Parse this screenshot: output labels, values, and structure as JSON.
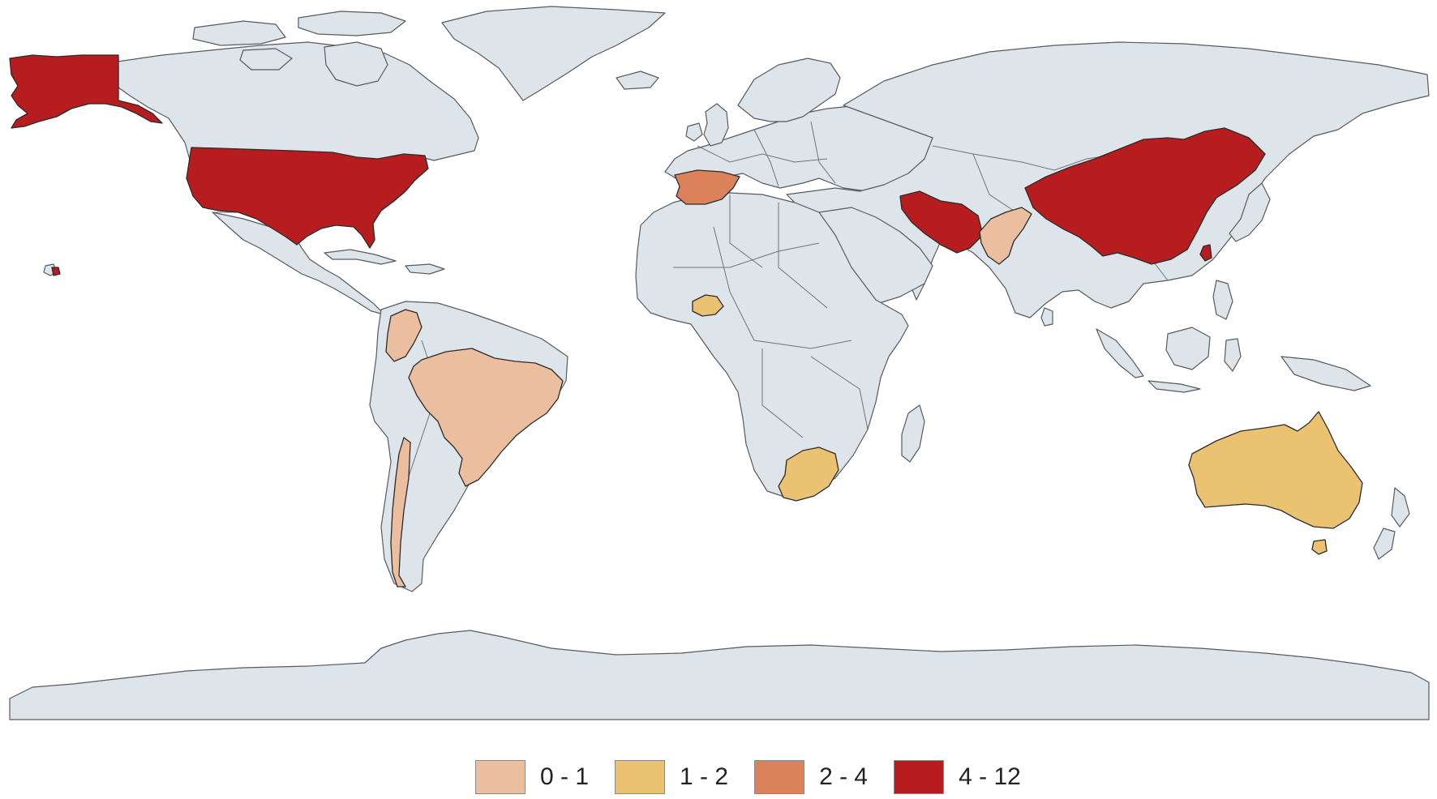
{
  "map": {
    "land_color": "#dee5ea",
    "border_color": "#555b60",
    "classes": [
      {
        "label": "0 - 1",
        "color": "#ebbe9f"
      },
      {
        "label": "1 - 2",
        "color": "#ebc271"
      },
      {
        "label": "2 - 4",
        "color": "#dc825a"
      },
      {
        "label": "4 - 12",
        "color": "#b71c1f"
      }
    ],
    "countries": [
      {
        "name": "United States",
        "class": "4 - 12"
      },
      {
        "name": "China",
        "class": "4 - 12"
      },
      {
        "name": "Iran",
        "class": "4 - 12"
      },
      {
        "name": "Taiwan",
        "class": "4 - 12"
      },
      {
        "name": "Spain",
        "class": "2 - 4"
      },
      {
        "name": "Australia",
        "class": "1 - 2"
      },
      {
        "name": "South Africa",
        "class": "1 - 2"
      },
      {
        "name": "Burkina Faso",
        "class": "1 - 2"
      },
      {
        "name": "Brazil",
        "class": "0 - 1"
      },
      {
        "name": "Colombia",
        "class": "0 - 1"
      },
      {
        "name": "Chile",
        "class": "0 - 1"
      },
      {
        "name": "Pakistan",
        "class": "0 - 1"
      }
    ]
  }
}
